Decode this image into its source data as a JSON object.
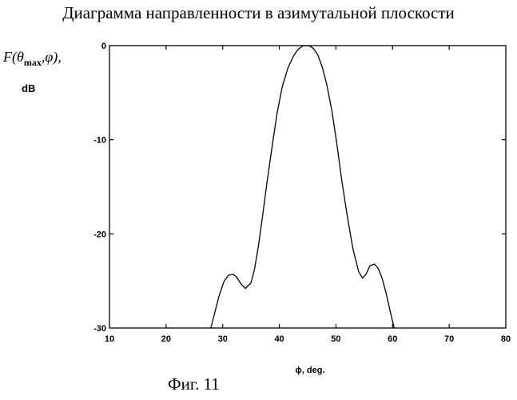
{
  "chart_data": {
    "type": "line",
    "title": "Диаграмма направленности в азимутальной плоскости",
    "ylabel_main": "F(θ",
    "ylabel_sub": "max",
    "ylabel_rest": ",φ),",
    "ylabel_unit": "dB",
    "xlabel": "ϕ, deg.",
    "xlim": [
      10,
      80
    ],
    "ylim": [
      -30,
      0
    ],
    "xticks": [
      "10",
      "20",
      "30",
      "40",
      "50",
      "60",
      "70",
      "80"
    ],
    "yticks": [
      "0",
      "-10",
      "-20",
      "-30"
    ],
    "grid": false,
    "series": [
      {
        "x": [
          27.9,
          28.5,
          29.3,
          30.2,
          31.0,
          31.8,
          32.5,
          33.2,
          34.0,
          35.0,
          35.6,
          36.3,
          37.0,
          37.8,
          38.7,
          39.6,
          40.5,
          41.5,
          42.5,
          43.3,
          44.1,
          44.8,
          45.4,
          46.0,
          46.8,
          47.6,
          48.4,
          49.3,
          50.2,
          51.0,
          52.0,
          53.0,
          54.0,
          54.7,
          55.3,
          56.0,
          56.8,
          57.5,
          58.2,
          58.9,
          59.5,
          60.0,
          60.3
        ],
        "y": [
          -30,
          -28.6,
          -26.7,
          -25.1,
          -24.4,
          -24.3,
          -24.6,
          -25.3,
          -25.8,
          -25.2,
          -23.8,
          -21.3,
          -18.3,
          -14.6,
          -10.8,
          -7.2,
          -4.4,
          -2.4,
          -1.1,
          -0.4,
          -0.05,
          0.0,
          -0.05,
          -0.3,
          -1.0,
          -2.3,
          -4.2,
          -7.0,
          -10.6,
          -14.2,
          -18.1,
          -21.6,
          -24.0,
          -24.7,
          -24.3,
          -23.4,
          -23.2,
          -23.7,
          -24.8,
          -26.4,
          -28.0,
          -29.3,
          -30
        ]
      }
    ]
  },
  "caption": "Фиг. 11"
}
